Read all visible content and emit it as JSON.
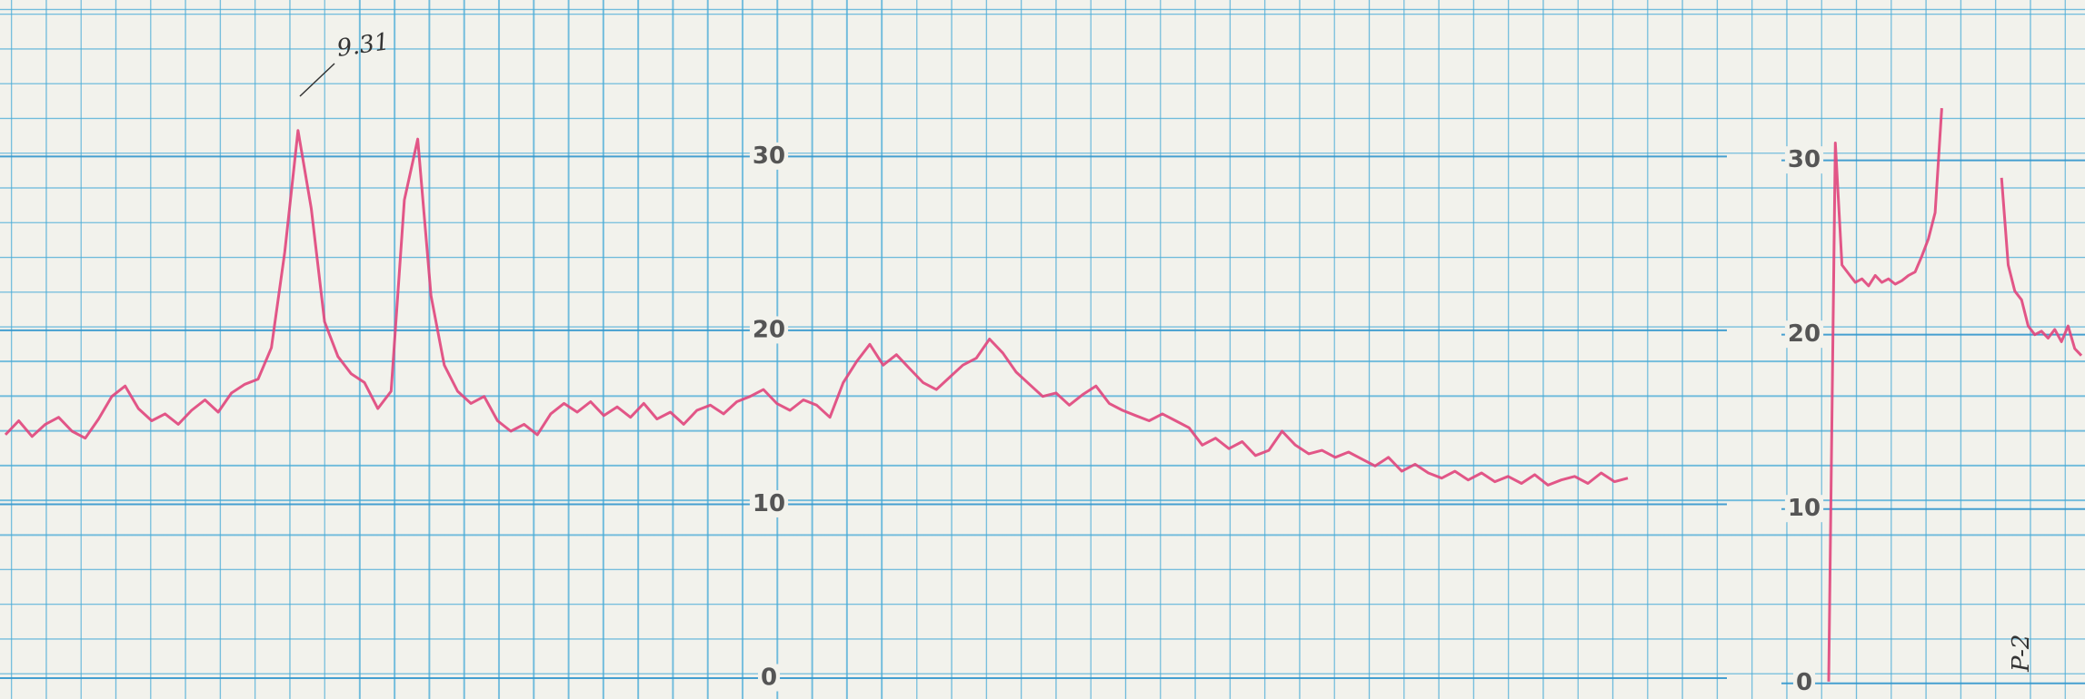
{
  "chart_data": [
    {
      "type": "line",
      "color": "#e0457c",
      "ylim": [
        -1.2,
        39
      ],
      "yticks": [
        0,
        10,
        20,
        30
      ],
      "grid": true,
      "annotation": "9.31",
      "values": [
        14.0,
        14.8,
        13.9,
        14.6,
        15.0,
        14.2,
        13.8,
        14.9,
        16.2,
        16.8,
        15.5,
        14.8,
        15.2,
        14.6,
        15.4,
        16.0,
        15.3,
        16.4,
        16.9,
        17.2,
        19.0,
        24.5,
        31.5,
        27.0,
        20.5,
        18.5,
        17.5,
        17.0,
        15.5,
        16.5,
        27.5,
        31.0,
        22.0,
        18.0,
        16.5,
        15.8,
        16.2,
        14.8,
        14.2,
        14.6,
        14.0,
        15.2,
        15.8,
        15.3,
        15.9,
        15.1,
        15.6,
        15.0,
        15.8,
        14.9,
        15.3,
        14.6,
        15.4,
        15.7,
        15.2,
        15.9,
        16.2,
        16.6,
        15.8,
        15.4,
        16.0,
        15.7,
        15.0,
        17.0,
        18.2,
        19.2,
        18.0,
        18.6,
        17.8,
        17.0,
        16.6,
        17.3,
        18.0,
        18.4,
        19.5,
        18.7,
        17.6,
        16.9,
        16.2,
        16.4,
        15.7,
        16.3,
        16.8,
        15.8,
        15.4,
        15.1,
        14.8,
        15.2,
        14.8,
        14.4,
        13.4,
        13.8,
        13.2,
        13.6,
        12.8,
        13.1,
        14.2,
        13.4,
        12.9,
        13.1,
        12.7,
        13.0,
        12.6,
        12.2,
        12.7,
        11.9,
        12.3,
        11.8,
        11.5,
        11.9,
        11.4,
        11.8,
        11.3,
        11.6,
        11.2,
        11.7,
        11.1,
        11.4,
        11.6,
        11.2,
        11.8,
        11.3,
        11.5
      ]
    },
    {
      "type": "line",
      "color": "#e0457c",
      "ylim": [
        -0.9,
        39.2
      ],
      "yticks": [
        0,
        10,
        20,
        30
      ],
      "grid": true,
      "annotation": "P-2",
      "values": [
        0.1,
        31.0,
        24.0,
        23.5,
        23.0,
        23.2,
        22.8,
        23.4,
        23.0,
        23.2,
        22.9,
        23.1,
        23.4,
        23.6,
        24.5,
        25.5,
        27.0,
        33.0,
        null,
        null,
        null,
        null,
        null,
        null,
        null,
        null,
        29.0,
        24.0,
        22.5,
        22.0,
        20.5,
        20.0,
        20.2,
        19.8,
        20.3,
        19.6,
        20.5,
        19.2,
        18.8
      ]
    }
  ]
}
